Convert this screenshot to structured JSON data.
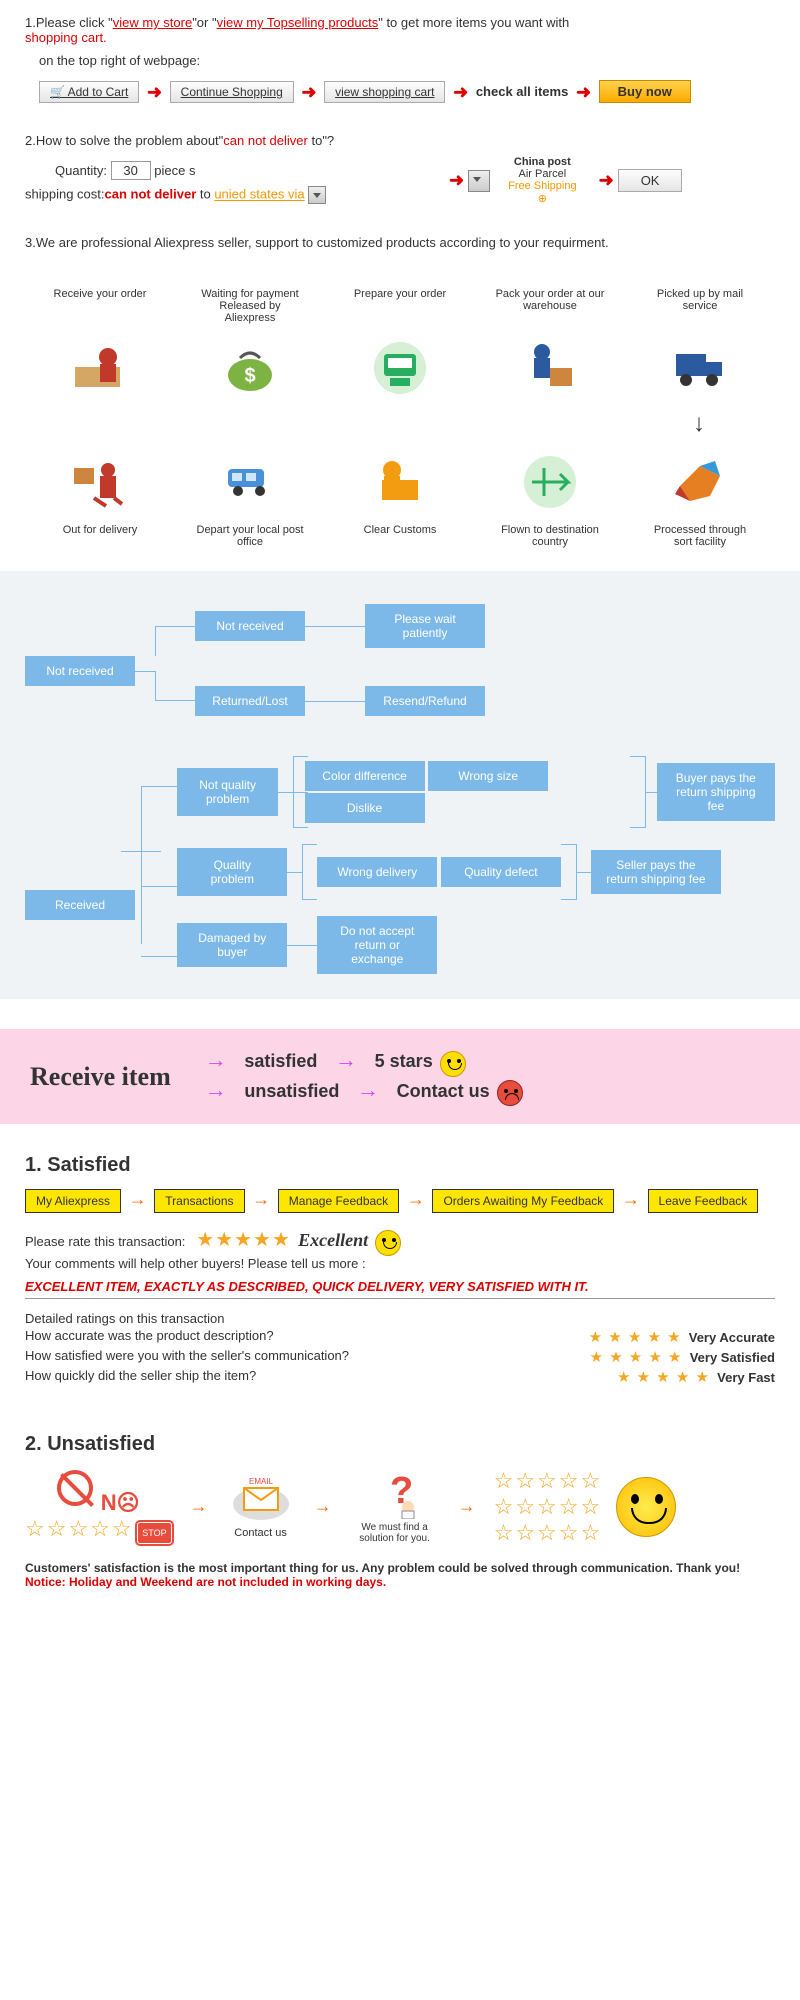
{
  "step1": {
    "prefix": "1.Please click \"",
    "link1": "view my store",
    "mid": "\"or \"",
    "link2": "view my Topselling products",
    "suffix": "\" to get more items you want with",
    "cart": "shopping cart.",
    "sub": "on the top right of webpage:",
    "btn_add": "🛒 Add to Cart",
    "btn_continue": "Continue Shopping",
    "btn_view": "view shopping cart",
    "txt_check": "check all items",
    "btn_buy": "Buy now"
  },
  "step2": {
    "q": "2.How to solve the problem about\"",
    "cant": "can not deliver",
    "q2": " to\"?",
    "qty_label": "Quantity:",
    "qty_val": "30",
    "qty_unit": " piece s",
    "ship_label": "shipping cost:",
    "ship_cant": "can not deliver",
    "ship_to": " to ",
    "ship_dest": "unied states via",
    "china_post": "China post",
    "air_parcel": "Air Parcel",
    "free_ship": "Free Shipping",
    "ok": "OK"
  },
  "step3": "3.We are professional Aliexpress seller, support to customized products according to your requirment.",
  "process": {
    "top": [
      "Receive your order",
      "Waiting for payment Released by Aliexpress",
      "Prepare your order",
      "Pack your order at our warehouse",
      "Picked up by mail service"
    ],
    "bottom": [
      "Out for delivery",
      "Depart your local post office",
      "Clear Customs",
      "Flown to destination country",
      "Processed through sort facility"
    ]
  },
  "flow": {
    "not_received": "Not received",
    "nr1": "Not received",
    "nr1r": "Please wait patiently",
    "nr2": "Returned/Lost",
    "nr2r": "Resend/Refund",
    "received": "Received",
    "nq": "Not quality problem",
    "cd": "Color difference",
    "ws": "Wrong size",
    "dl": "Dislike",
    "buyer_pays": "Buyer pays the return shipping fee",
    "qp": "Quality problem",
    "wd": "Wrong delivery",
    "qd": "Quality defect",
    "seller_pays": "Seller pays the return shipping fee",
    "db": "Damaged by buyer",
    "dna": "Do not accept return or exchange"
  },
  "pink": {
    "title": "Receive item",
    "satisfied": "satisfied",
    "unsatisfied": "unsatisfied",
    "stars": "5 stars",
    "contact": "Contact us"
  },
  "sat": {
    "h": "1. Satisfied",
    "t1": "My Aliexpress",
    "t2": "Transactions",
    "t3": "Manage Feedback",
    "t4": "Orders Awaiting My Feedback",
    "t5": "Leave Feedback",
    "rate": "Please rate this transaction:",
    "excellent": "Excellent",
    "comment_label": "Your comments will help other buyers! Please tell us more :",
    "comment_text": "EXCELLENT ITEM, EXACTLY AS DESCRIBED, QUICK DELIVERY, VERY SATISFIED WITH IT.",
    "det": "Detailed ratings on this transaction",
    "q1": "How accurate was the product description?",
    "q2": "How satisfied were you with the seller's communication?",
    "q3": "How quickly did the seller ship the item?",
    "a1": "Very Accurate",
    "a2": "Very Satisfied",
    "a3": "Very Fast"
  },
  "unsat": {
    "h": "2. Unsatisfied",
    "no": "N☹",
    "stop": "STOP",
    "email": "EMAIL",
    "contact": "Contact us",
    "find": "We must find a solution for you."
  },
  "footer": {
    "l1": "Customers' satisfaction is the most important thing for us. Any problem could be solved through communication. Thank you!",
    "l2": "Notice: Holiday and Weekend are not included in working days."
  },
  "colors": {
    "flowbox": "#7cb9e8",
    "pink_bg": "#fcd6e6",
    "yellow": "#ffe600",
    "red": "#d00",
    "orange": "#f39800"
  }
}
